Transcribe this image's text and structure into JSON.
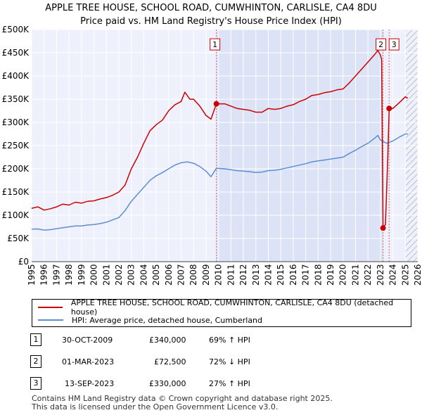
{
  "title_line1": "APPLE TREE HOUSE, SCHOOL ROAD, CUMWHINTON, CARLISLE, CA4 8DU",
  "title_line2": "Price paid vs. HM Land Registry's House Price Index (HPI)",
  "chart_data": {
    "type": "line",
    "ylim": [
      0,
      500000
    ],
    "xlim": [
      1995,
      2026
    ],
    "y_ticks": [
      {
        "value": 0,
        "label": "£0"
      },
      {
        "value": 50000,
        "label": "£50K"
      },
      {
        "value": 100000,
        "label": "£100K"
      },
      {
        "value": 150000,
        "label": "£150K"
      },
      {
        "value": 200000,
        "label": "£200K"
      },
      {
        "value": 250000,
        "label": "£250K"
      },
      {
        "value": 300000,
        "label": "£300K"
      },
      {
        "value": 350000,
        "label": "£350K"
      },
      {
        "value": 400000,
        "label": "£400K"
      },
      {
        "value": 450000,
        "label": "£450K"
      },
      {
        "value": 500000,
        "label": "£500K"
      }
    ],
    "x_ticks": [
      "1995",
      "1996",
      "1997",
      "1998",
      "1999",
      "2000",
      "2001",
      "2002",
      "2003",
      "2004",
      "2005",
      "2006",
      "2007",
      "2008",
      "2009",
      "2010",
      "2011",
      "2012",
      "2013",
      "2014",
      "2015",
      "2016",
      "2017",
      "2018",
      "2019",
      "2020",
      "2021",
      "2022",
      "2023",
      "2024",
      "2025",
      "2026"
    ],
    "shaded_region": [
      2009.83,
      2023.21
    ],
    "forecast_start": 2025.0,
    "series": [
      {
        "name": "APPLE TREE HOUSE, SCHOOL ROAD, CUMWHINTON, CARLISLE, CA4 8DU (detached house)",
        "color": "#cc0000",
        "points": [
          [
            1995.0,
            115000
          ],
          [
            1995.5,
            118000
          ],
          [
            1996.0,
            111000
          ],
          [
            1996.5,
            114000
          ],
          [
            1997.0,
            118000
          ],
          [
            1997.5,
            124000
          ],
          [
            1998.0,
            122000
          ],
          [
            1998.5,
            128000
          ],
          [
            1999.0,
            126000
          ],
          [
            1999.5,
            130000
          ],
          [
            2000.0,
            131000
          ],
          [
            2000.5,
            135000
          ],
          [
            2001.0,
            138000
          ],
          [
            2001.5,
            143000
          ],
          [
            2002.0,
            150000
          ],
          [
            2002.5,
            165000
          ],
          [
            2003.0,
            200000
          ],
          [
            2003.5,
            225000
          ],
          [
            2004.0,
            255000
          ],
          [
            2004.5,
            282000
          ],
          [
            2005.0,
            295000
          ],
          [
            2005.5,
            305000
          ],
          [
            2006.0,
            325000
          ],
          [
            2006.5,
            338000
          ],
          [
            2007.0,
            345000
          ],
          [
            2007.3,
            365000
          ],
          [
            2007.7,
            350000
          ],
          [
            2008.0,
            350000
          ],
          [
            2008.5,
            335000
          ],
          [
            2009.0,
            315000
          ],
          [
            2009.4,
            307000
          ],
          [
            2009.83,
            340000
          ],
          [
            2010.5,
            340000
          ],
          [
            2011.0,
            335000
          ],
          [
            2011.5,
            330000
          ],
          [
            2012.0,
            328000
          ],
          [
            2012.5,
            326000
          ],
          [
            2013.0,
            322000
          ],
          [
            2013.5,
            322000
          ],
          [
            2014.0,
            330000
          ],
          [
            2014.5,
            328000
          ],
          [
            2015.0,
            330000
          ],
          [
            2015.5,
            335000
          ],
          [
            2016.0,
            338000
          ],
          [
            2016.5,
            345000
          ],
          [
            2017.0,
            350000
          ],
          [
            2017.5,
            358000
          ],
          [
            2018.0,
            360000
          ],
          [
            2018.5,
            364000
          ],
          [
            2019.0,
            366000
          ],
          [
            2019.5,
            370000
          ],
          [
            2020.0,
            372000
          ],
          [
            2020.5,
            385000
          ],
          [
            2021.0,
            400000
          ],
          [
            2021.5,
            415000
          ],
          [
            2022.0,
            430000
          ],
          [
            2022.5,
            445000
          ],
          [
            2022.8,
            455000
          ],
          [
            2023.0,
            445000
          ],
          [
            2023.1,
            435000
          ],
          [
            2023.21,
            72500
          ],
          [
            2023.4,
            80000
          ],
          [
            2023.6,
            230000
          ],
          [
            2023.7,
            330000
          ],
          [
            2024.0,
            330000
          ],
          [
            2024.5,
            342000
          ],
          [
            2025.0,
            355000
          ],
          [
            2025.2,
            352000
          ]
        ]
      },
      {
        "name": "HPI: Average price, detached house, Cumberland",
        "color": "#5b8fcf",
        "points": [
          [
            1995.0,
            70000
          ],
          [
            1995.5,
            70500
          ],
          [
            1996.0,
            68000
          ],
          [
            1996.5,
            69000
          ],
          [
            1997.0,
            71000
          ],
          [
            1997.5,
            73000
          ],
          [
            1998.0,
            75000
          ],
          [
            1998.5,
            77000
          ],
          [
            1999.0,
            77000
          ],
          [
            1999.5,
            79000
          ],
          [
            2000.0,
            80000
          ],
          [
            2000.5,
            82000
          ],
          [
            2001.0,
            85000
          ],
          [
            2001.5,
            90000
          ],
          [
            2002.0,
            95000
          ],
          [
            2002.5,
            110000
          ],
          [
            2003.0,
            130000
          ],
          [
            2003.5,
            145000
          ],
          [
            2004.0,
            160000
          ],
          [
            2004.5,
            175000
          ],
          [
            2005.0,
            185000
          ],
          [
            2005.5,
            192000
          ],
          [
            2006.0,
            200000
          ],
          [
            2006.5,
            208000
          ],
          [
            2007.0,
            213000
          ],
          [
            2007.5,
            215000
          ],
          [
            2008.0,
            212000
          ],
          [
            2008.5,
            205000
          ],
          [
            2009.0,
            195000
          ],
          [
            2009.4,
            183000
          ],
          [
            2009.83,
            201000
          ],
          [
            2010.5,
            200000
          ],
          [
            2011.0,
            198000
          ],
          [
            2011.5,
            196000
          ],
          [
            2012.0,
            195000
          ],
          [
            2012.5,
            194000
          ],
          [
            2013.0,
            192000
          ],
          [
            2013.5,
            193000
          ],
          [
            2014.0,
            196000
          ],
          [
            2014.5,
            197000
          ],
          [
            2015.0,
            199000
          ],
          [
            2015.5,
            202000
          ],
          [
            2016.0,
            205000
          ],
          [
            2016.5,
            208000
          ],
          [
            2017.0,
            211000
          ],
          [
            2017.5,
            215000
          ],
          [
            2018.0,
            217000
          ],
          [
            2018.5,
            219000
          ],
          [
            2019.0,
            221000
          ],
          [
            2019.5,
            223000
          ],
          [
            2020.0,
            225000
          ],
          [
            2020.5,
            233000
          ],
          [
            2021.0,
            240000
          ],
          [
            2021.5,
            248000
          ],
          [
            2022.0,
            255000
          ],
          [
            2022.5,
            265000
          ],
          [
            2022.8,
            272000
          ],
          [
            2023.0,
            262000
          ],
          [
            2023.5,
            255000
          ],
          [
            2024.0,
            260000
          ],
          [
            2024.5,
            268000
          ],
          [
            2025.0,
            275000
          ],
          [
            2025.2,
            275000
          ]
        ]
      }
    ],
    "markers": [
      {
        "label": "1",
        "x": 2009.83,
        "y": 340000,
        "box_y": 465000
      },
      {
        "label": "2",
        "x": 2023.21,
        "y": 72500,
        "box_y": 465000
      },
      {
        "label": "3",
        "x": 2023.7,
        "y": 330000,
        "box_y": 465000
      }
    ]
  },
  "legend": {
    "series1_label": "APPLE TREE HOUSE, SCHOOL ROAD, CUMWHINTON, CARLISLE, CA4 8DU (detached house)",
    "series2_label": "HPI: Average price, detached house, Cumberland"
  },
  "transactions": [
    {
      "num": "1",
      "date": "30-OCT-2009",
      "price": "£340,000",
      "hpi": "69% ↑ HPI"
    },
    {
      "num": "2",
      "date": "01-MAR-2023",
      "price": "£72,500",
      "hpi": "72% ↓ HPI"
    },
    {
      "num": "3",
      "date": "13-SEP-2023",
      "price": "£330,000",
      "hpi": "27% ↑ HPI"
    }
  ],
  "footer": {
    "line1": "Contains HM Land Registry data © Crown copyright and database right 2025.",
    "line2": "This data is licensed under the Open Government Licence v3.0."
  }
}
